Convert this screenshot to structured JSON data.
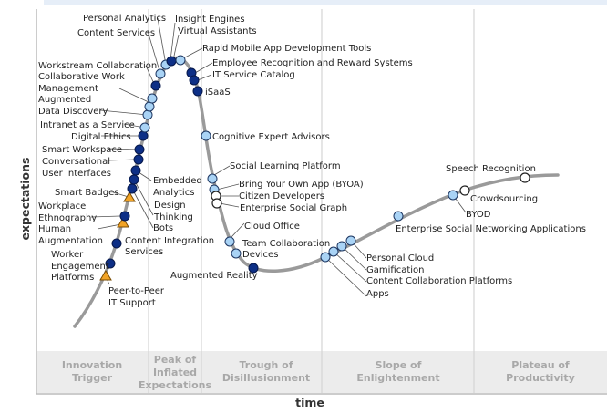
{
  "axes": {
    "x_label": "time",
    "y_label": "expectations"
  },
  "phases": [
    {
      "lines": [
        "Innovation",
        "Trigger"
      ]
    },
    {
      "lines": [
        "Peak of",
        "Inflated",
        "Expectations"
      ]
    },
    {
      "lines": [
        "Trough of",
        "Disillusionment"
      ]
    },
    {
      "lines": [
        "Slope of",
        "Enlightenment"
      ]
    },
    {
      "lines": [
        "Plateau of",
        "Productivity"
      ]
    }
  ],
  "colors": {
    "dark_marker": "#0d2f86",
    "light_marker": "#a9d3f5",
    "white_marker": "#ffffff",
    "triangle_marker": "#f2a427",
    "curve": "#999999",
    "phase_band": "#ececec"
  },
  "technologies": [
    {
      "name": "Peer-to-Peer IT Support",
      "lines": [
        "Peer-to-Peer",
        "IT Support"
      ],
      "marker": "triangle"
    },
    {
      "name": "Worker Engagement Platforms",
      "lines": [
        "Worker",
        "Engagement",
        "Platforms"
      ],
      "marker": "dark"
    },
    {
      "name": "Content Integration Services",
      "lines": [
        "Content Integration",
        "Services"
      ],
      "marker": "dark"
    },
    {
      "name": "Human Augmentation",
      "lines": [
        "Human",
        "Augmentation"
      ],
      "marker": "triangle"
    },
    {
      "name": "Workplace Ethnography",
      "lines": [
        "Workplace",
        "Ethnography"
      ],
      "marker": "dark"
    },
    {
      "name": "Smart Badges",
      "lines": [
        "Smart Badges"
      ],
      "marker": "triangle"
    },
    {
      "name": "Bots",
      "lines": [
        "Bots"
      ],
      "marker": "dark"
    },
    {
      "name": "Design Thinking",
      "lines": [
        "Design",
        "Thinking"
      ],
      "marker": "dark"
    },
    {
      "name": "Embedded Analytics",
      "lines": [
        "Embedded",
        "Analytics"
      ],
      "marker": "dark"
    },
    {
      "name": "Conversational User Interfaces",
      "lines": [
        "Conversational",
        "User Interfaces"
      ],
      "marker": "dark"
    },
    {
      "name": "Smart Workspace",
      "lines": [
        "Smart Workspace"
      ],
      "marker": "dark"
    },
    {
      "name": "Digital Ethics",
      "lines": [
        "Digital Ethics"
      ],
      "marker": "dark"
    },
    {
      "name": "Intranet as a Service",
      "lines": [
        "Intranet as a Service"
      ],
      "marker": "light"
    },
    {
      "name": "Augmented Data Discovery",
      "lines": [
        "Augmented",
        "Data Discovery"
      ],
      "marker": "light"
    },
    {
      "name": "Collaborative Work Management",
      "lines": [
        "Collaborative Work",
        "Management"
      ],
      "marker": "light"
    },
    {
      "name": "Workstream Collaboration",
      "lines": [
        "Workstream Collaboration"
      ],
      "marker": "dark"
    },
    {
      "name": "Content Services",
      "lines": [
        "Content Services"
      ],
      "marker": "light"
    },
    {
      "name": "Personal Analytics",
      "lines": [
        "Personal Analytics"
      ],
      "marker": "light"
    },
    {
      "name": "Insight Engines",
      "lines": [
        "Insight Engines"
      ],
      "marker": "dark"
    },
    {
      "name": "Virtual Assistants",
      "lines": [
        "Virtual Assistants"
      ],
      "marker": "dark"
    },
    {
      "name": "Rapid Mobile App Development Tools",
      "lines": [
        "Rapid Mobile App Development Tools"
      ],
      "marker": "light"
    },
    {
      "name": "Employee Recognition and Reward Systems",
      "lines": [
        "Employee Recognition and Reward Systems"
      ],
      "marker": "dark"
    },
    {
      "name": "IT Service Catalog",
      "lines": [
        "IT Service Catalog"
      ],
      "marker": "dark"
    },
    {
      "name": "iSaaS",
      "lines": [
        "iSaaS"
      ],
      "marker": "dark"
    },
    {
      "name": "Cognitive Expert Advisors",
      "lines": [
        "Cognitive Expert Advisors"
      ],
      "marker": "light"
    },
    {
      "name": "Social Learning Platform",
      "lines": [
        "Social Learning Platform"
      ],
      "marker": "light"
    },
    {
      "name": "Bring Your Own App (BYOA)",
      "lines": [
        "Bring Your Own App (BYOA)"
      ],
      "marker": "light"
    },
    {
      "name": "Citizen Developers",
      "lines": [
        "Citizen Developers"
      ],
      "marker": "white"
    },
    {
      "name": "Enterprise Social Graph",
      "lines": [
        "Enterprise Social Graph"
      ],
      "marker": "white"
    },
    {
      "name": "Cloud Office",
      "lines": [
        "Cloud Office"
      ],
      "marker": "light"
    },
    {
      "name": "Team Collaboration Devices",
      "lines": [
        "Team Collaboration",
        "Devices"
      ],
      "marker": "light"
    },
    {
      "name": "Augmented Reality",
      "lines": [
        "Augmented Reality"
      ],
      "marker": "dark"
    },
    {
      "name": "Apps",
      "lines": [
        "Apps"
      ],
      "marker": "light"
    },
    {
      "name": "Content Collaboration Platforms",
      "lines": [
        "Content Collaboration Platforms"
      ],
      "marker": "light"
    },
    {
      "name": "Gamification",
      "lines": [
        "Gamification"
      ],
      "marker": "light"
    },
    {
      "name": "Personal Cloud",
      "lines": [
        "Personal Cloud"
      ],
      "marker": "light"
    },
    {
      "name": "Enterprise Social Networking Applications",
      "lines": [
        "Enterprise Social Networking Applications"
      ],
      "marker": "light"
    },
    {
      "name": "BYOD",
      "lines": [
        "BYOD"
      ],
      "marker": "light"
    },
    {
      "name": "Crowdsourcing",
      "lines": [
        "Crowdsourcing"
      ],
      "marker": "white"
    },
    {
      "name": "Speech Recognition",
      "lines": [
        "Speech Recognition"
      ],
      "marker": "white"
    }
  ]
}
